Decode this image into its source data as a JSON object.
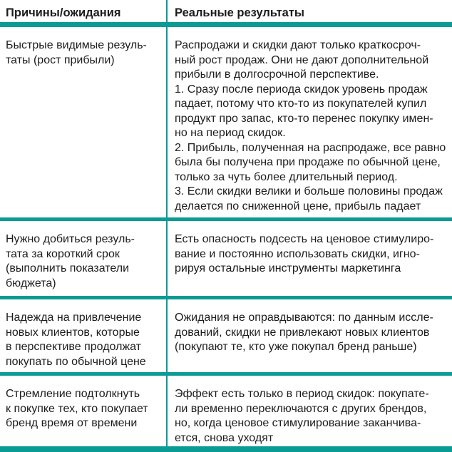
{
  "theme": {
    "accent_color": "#0a9b94",
    "text_color": "#1c1c1c",
    "background_color": "#ffffff"
  },
  "table": {
    "header": {
      "col1": "Причины/ожидания",
      "col2": "Реальные результаты"
    },
    "rows": [
      {
        "cause": "Быстрые видимые резуль-\nтаты (рост прибыли)",
        "result": "Распродажи и скидки дают только краткосроч-\nный рост продаж. Они не дают дополнительной\nприбыли в долгосрочной перспективе.\n1. Сразу после периода скидок уровень продаж\nпадает, потому что кто-то из покупателей купил\nпродукт про запас, кто-то перенес покупку имен-\nно на период скидок.\n2. Прибыль, полученная на распродаже, все равно\nбыла бы получена при продаже по обычной цене,\nтолько за чуть более длительный период.\n3. Если скидки велики и больше половины продаж\nделается по сниженной цене, прибыль падает"
      },
      {
        "cause": "Нужно добиться резуль-\nтата за короткий срок\n(выполнить показатели\nбюджета)",
        "result": "Есть опасность подсесть на ценовое стимулиро-\nвание и постоянно использовать скидки, игно-\nрируя остальные инструменты маркетинга"
      },
      {
        "cause": "Надежда на привлечение\nновых клиентов, которые\nв перспективе продолжат\nпокупать по обычной цене",
        "result": "Ожидания не оправдываются: по данным иссле-\nдований, скидки не привлекают новых клиентов\n(покупают те, кто уже покупал бренд раньше)"
      },
      {
        "cause": "Стремление подтолкнуть\nк покупке тех, кто покупает\nбренд время от времени",
        "result": "Эффект есть только в период скидок: покупате-\nли временно переключаются с других брендов,\nно, когда ценовое стимулирование заканчива-\nется, снова уходят"
      }
    ]
  }
}
